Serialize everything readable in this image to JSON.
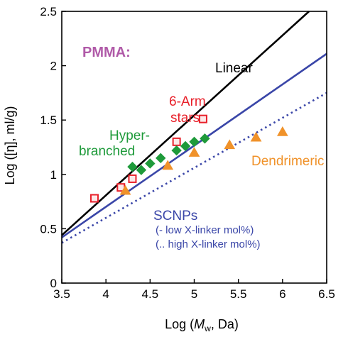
{
  "chart_data": {
    "type": "scatter",
    "xlim": [
      3.5,
      6.5
    ],
    "ylim": [
      0,
      2.5
    ],
    "xticks": [
      "3.5",
      "4",
      "4.5",
      "5",
      "5.5",
      "6",
      "6.5"
    ],
    "xtick_values": [
      3.5,
      4,
      4.5,
      5,
      5.5,
      6,
      6.5
    ],
    "yticks": [
      "0",
      "0.5",
      "1",
      "1.5",
      "2",
      "2.5"
    ],
    "ytick_values": [
      0,
      0.5,
      1,
      1.5,
      2,
      2.5
    ],
    "xlabel": {
      "pre": "Log (",
      "italic": "M",
      "sub": "w",
      "post": ", Da)"
    },
    "ylabel": "Log ([η], ml/g)",
    "grid": false,
    "lines": [
      {
        "name": "Linear",
        "style": "solid",
        "color": "#000000",
        "x": [
          3.5,
          6.3
        ],
        "y": [
          0.44,
          2.5
        ]
      },
      {
        "name": "SCNPs low X-linker",
        "style": "solid",
        "color": "#3a46a8",
        "x": [
          3.5,
          6.5
        ],
        "y": [
          0.42,
          2.11
        ]
      },
      {
        "name": "SCNPs high X-linker",
        "style": "dotted",
        "color": "#3a46a8",
        "x": [
          3.5,
          6.5
        ],
        "y": [
          0.37,
          1.75
        ]
      }
    ],
    "series": [
      {
        "name": "6-Arm stars",
        "marker": "square",
        "color": "#e8202a",
        "x": [
          3.87,
          4.17,
          4.3,
          4.8,
          5.1
        ],
        "y": [
          0.78,
          0.88,
          0.96,
          1.3,
          1.51
        ]
      },
      {
        "name": "Hyperbranched",
        "marker": "diamond",
        "color": "#1e9a3a",
        "x": [
          4.3,
          4.4,
          4.5,
          4.62,
          4.8,
          4.9,
          5.0,
          5.12
        ],
        "y": [
          1.07,
          1.04,
          1.1,
          1.15,
          1.22,
          1.26,
          1.3,
          1.33
        ]
      },
      {
        "name": "Dendrimeric",
        "marker": "triangle",
        "color": "#f0922a",
        "x": [
          4.22,
          4.7,
          5.0,
          5.4,
          5.7,
          6.0
        ],
        "y": [
          0.85,
          1.08,
          1.2,
          1.27,
          1.34,
          1.39
        ]
      }
    ]
  },
  "annotations": {
    "pmma": {
      "text": "PMMA:",
      "color": "#b05aa8"
    },
    "linear": {
      "text": "Linear",
      "color": "#000000"
    },
    "stars1": {
      "text": "6-Arm",
      "color": "#e8202a"
    },
    "stars2": {
      "text": "stars",
      "color": "#e8202a"
    },
    "hyper1": {
      "text": "Hyper-",
      "color": "#1e9a3a"
    },
    "hyper2": {
      "text": "branched",
      "color": "#1e9a3a"
    },
    "dendri": {
      "text": "Dendrimeric",
      "color": "#f0922a"
    },
    "scnps": {
      "text": "SCNPs",
      "color": "#3a46a8"
    },
    "scnps_low": {
      "text": "(- low X-linker mol%)",
      "color": "#3a46a8"
    },
    "scnps_high": {
      "text": "(.. high X-linker mol%)",
      "color": "#3a46a8"
    }
  }
}
